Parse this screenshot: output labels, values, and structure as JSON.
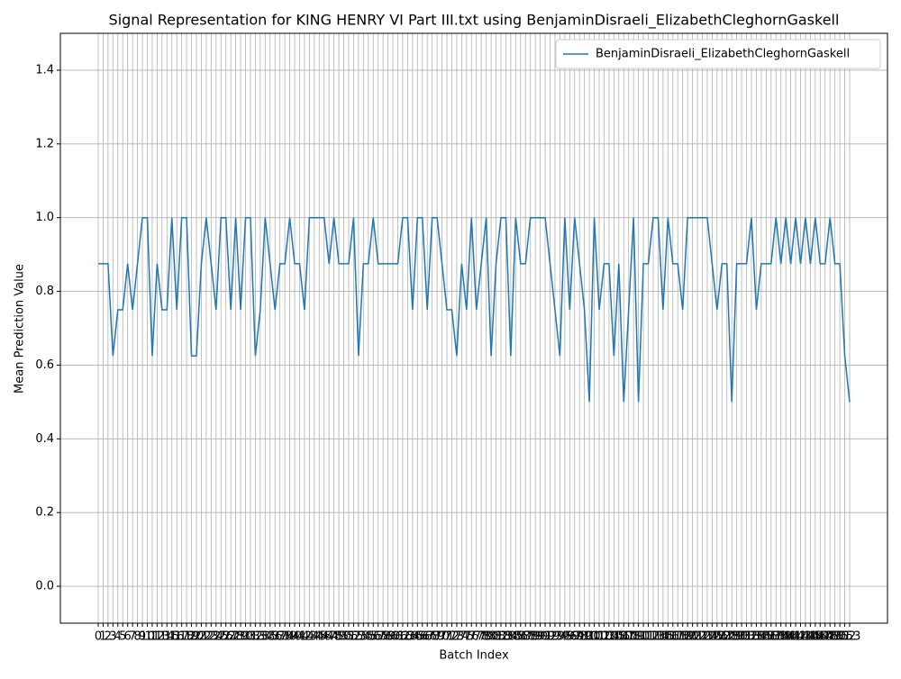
{
  "chart_data": {
    "type": "line",
    "title": "Signal Representation for KING HENRY VI Part III.txt using BenjaminDisraeli_ElizabethCleghornGaskell",
    "x_label": "Batch Index",
    "y_label": "Mean Prediction Value",
    "x": [
      0,
      1,
      2,
      3,
      4,
      5,
      6,
      7,
      8,
      9,
      10,
      11,
      12,
      13,
      14,
      15,
      16,
      17,
      18,
      19,
      20,
      21,
      22,
      23,
      24,
      25,
      26,
      27,
      28,
      29,
      30,
      31,
      32,
      33,
      34,
      35,
      36,
      37,
      38,
      39,
      40,
      41,
      42,
      43,
      44,
      45,
      46,
      47,
      48,
      49,
      50,
      51,
      52,
      53,
      54,
      55,
      56,
      57,
      58,
      59,
      60,
      61,
      62,
      63,
      64,
      65,
      66,
      67,
      68,
      69,
      70,
      71,
      72,
      73,
      74,
      75,
      76,
      77,
      78,
      79,
      80,
      81,
      82,
      83,
      84,
      85,
      86,
      87,
      88,
      89,
      90,
      91,
      92,
      93,
      94,
      95,
      96,
      97,
      98,
      99,
      100,
      101,
      102,
      103,
      104,
      105,
      106,
      107,
      108,
      109,
      110,
      111,
      112,
      113,
      114,
      115,
      116,
      117,
      118,
      119,
      120,
      121,
      122,
      123,
      124,
      125,
      126,
      127,
      128,
      129,
      130,
      131,
      132,
      133,
      134,
      135,
      136,
      137,
      138,
      139,
      140,
      141,
      142,
      143,
      144,
      145,
      146,
      147,
      148,
      149,
      150,
      151,
      152,
      153
    ],
    "series": [
      {
        "name": "BenjaminDisraeli_ElizabethCleghornGaskell",
        "color": "#1f77b4",
        "values": [
          0.875,
          0.875,
          0.875,
          0.625,
          0.75,
          0.75,
          0.875,
          0.75,
          0.875,
          1,
          1,
          0.625,
          0.875,
          0.75,
          0.75,
          1,
          0.75,
          1,
          1,
          0.625,
          0.625,
          0.875,
          1,
          0.875,
          0.75,
          1,
          1,
          0.75,
          1,
          0.75,
          1,
          1,
          0.625,
          0.75,
          1,
          0.875,
          0.75,
          0.875,
          0.875,
          1,
          0.875,
          0.875,
          0.75,
          1,
          1,
          1,
          1,
          0.875,
          1,
          0.875,
          0.875,
          0.875,
          1,
          0.625,
          0.875,
          0.875,
          1,
          0.875,
          0.875,
          0.875,
          0.875,
          0.875,
          1,
          1,
          0.75,
          1,
          1,
          0.75,
          1,
          1,
          0.875,
          0.75,
          0.75,
          0.625,
          0.875,
          0.75,
          1,
          0.75,
          0.875,
          1,
          0.625,
          0.875,
          1,
          1,
          0.625,
          1,
          0.875,
          0.875,
          1,
          1,
          1,
          1,
          0.875,
          0.75,
          0.625,
          1,
          0.75,
          1,
          0.875,
          0.75,
          0.5,
          1,
          0.75,
          0.875,
          0.875,
          0.625,
          0.875,
          0.5,
          0.75,
          1,
          0.5,
          0.875,
          0.875,
          1,
          1,
          0.75,
          1,
          0.875,
          0.875,
          0.75,
          1,
          1,
          1,
          1,
          1,
          0.875,
          0.75,
          0.875,
          0.875,
          0.5,
          0.875,
          0.875,
          0.875,
          1,
          0.75,
          0.875,
          0.875,
          0.875,
          1,
          0.875,
          1,
          0.875,
          1,
          0.875,
          1,
          0.875,
          1,
          0.875,
          0.875,
          1,
          0.875,
          0.875,
          0.625,
          0.5
        ]
      }
    ],
    "xlim": [
      -7.7,
      160.7
    ],
    "ylim": [
      -0.1,
      1.5
    ],
    "xticks": [
      0,
      1,
      2,
      3,
      4,
      5,
      6,
      7,
      8,
      9,
      10,
      11,
      12,
      13,
      14,
      15,
      16,
      17,
      18,
      19,
      20,
      21,
      22,
      23,
      24,
      25,
      26,
      27,
      28,
      29,
      30,
      31,
      32,
      33,
      34,
      35,
      36,
      37,
      38,
      39,
      40,
      41,
      42,
      43,
      44,
      45,
      46,
      47,
      48,
      49,
      50,
      51,
      52,
      53,
      54,
      55,
      56,
      57,
      58,
      59,
      60,
      61,
      62,
      63,
      64,
      65,
      66,
      67,
      68,
      69,
      70,
      71,
      72,
      73,
      74,
      75,
      76,
      77,
      78,
      79,
      80,
      81,
      82,
      83,
      84,
      85,
      86,
      87,
      88,
      89,
      90,
      91,
      92,
      93,
      94,
      95,
      96,
      97,
      98,
      99,
      100,
      101,
      102,
      103,
      104,
      105,
      106,
      107,
      108,
      109,
      110,
      111,
      112,
      113,
      114,
      115,
      116,
      117,
      118,
      119,
      120,
      121,
      122,
      123,
      124,
      125,
      126,
      127,
      128,
      129,
      130,
      131,
      132,
      133,
      134,
      135,
      136,
      137,
      138,
      139,
      140,
      141,
      142,
      143,
      144,
      145,
      146,
      147,
      148,
      149,
      150,
      151,
      152,
      153
    ],
    "yticks": [
      {
        "value": 0,
        "label": "0.0"
      },
      {
        "value": 0.2,
        "label": "0.2"
      },
      {
        "value": 0.4,
        "label": "0.4"
      },
      {
        "value": 0.6,
        "label": "0.6"
      },
      {
        "value": 0.8,
        "label": "0.8"
      },
      {
        "value": 1,
        "label": "1.0"
      },
      {
        "value": 1.2,
        "label": "1.2"
      },
      {
        "value": 1.4,
        "label": "1.4"
      }
    ],
    "grid": true,
    "legend": "upper right"
  }
}
